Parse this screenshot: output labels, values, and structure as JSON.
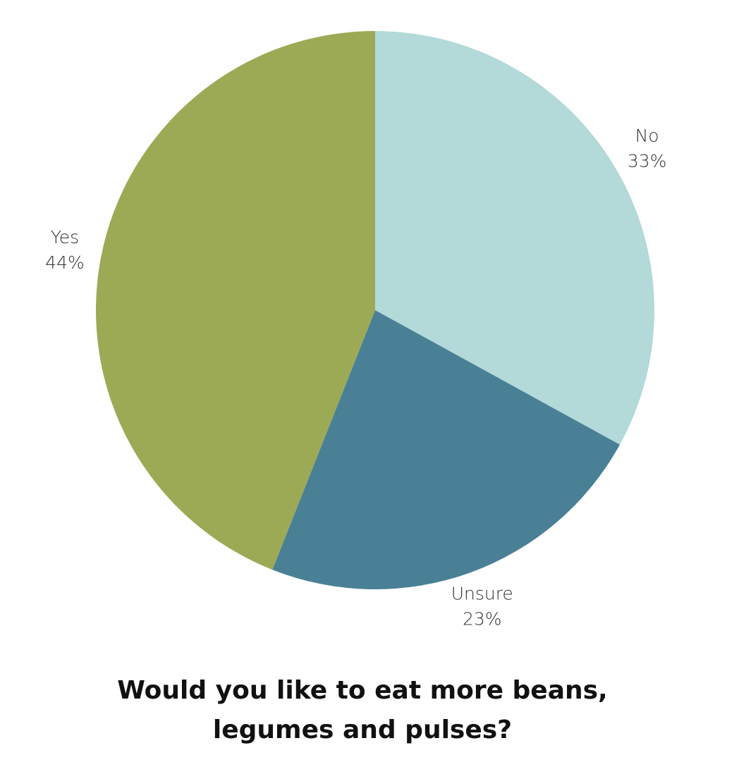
{
  "chart_data": {
    "type": "pie",
    "title": "Would you like to eat more beans, legumes and pulses?",
    "categories": [
      "No",
      "Unsure",
      "Yes"
    ],
    "values": [
      33,
      23,
      44
    ],
    "value_labels": [
      "33%",
      "23%",
      "44%"
    ],
    "colors": [
      "#b3d9d9",
      "#4a8096",
      "#9caa55"
    ]
  }
}
